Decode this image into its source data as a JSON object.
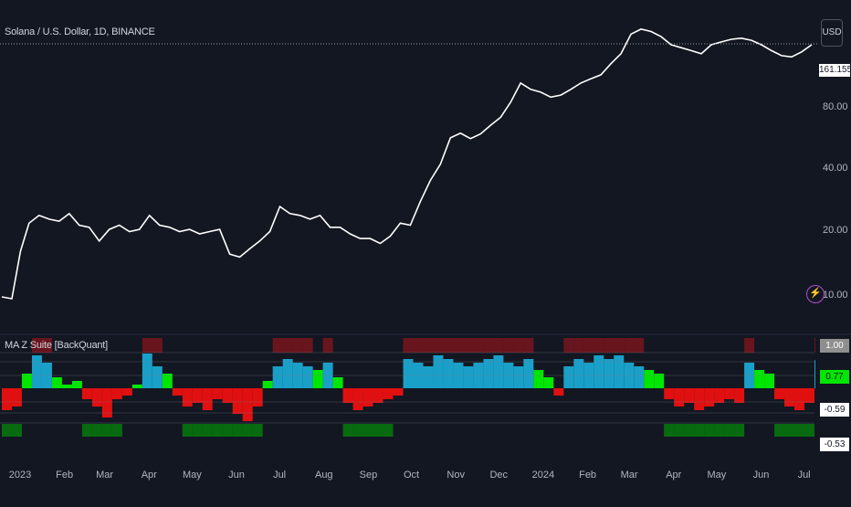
{
  "header": {
    "symbol": "Solana / U.S. Dollar, 1D, BINANCE",
    "currency": "USD"
  },
  "indicator": {
    "name": "MA Z Suite [BackQuant]"
  },
  "price_axis": {
    "current_tag": "161.1554",
    "labels": [
      "80.00",
      "40.00",
      "20.00",
      "10.00"
    ]
  },
  "indicator_axis": {
    "tags": [
      {
        "text": "1.00",
        "bg": "#8f8f8f",
        "fg": "#ffffff"
      },
      {
        "text": "0.77",
        "bg": "#00e600",
        "fg": "#131722"
      },
      {
        "text": "-0.59",
        "bg": "#ffffff",
        "fg": "#131722"
      },
      {
        "text": "-0.53",
        "bg": "#ffffff",
        "fg": "#131722"
      }
    ]
  },
  "time_axis": [
    "2023",
    "Feb",
    "Mar",
    "Apr",
    "May",
    "Jun",
    "Jul",
    "Aug",
    "Sep",
    "Oct",
    "Nov",
    "Dec",
    "2024",
    "Feb",
    "Mar",
    "Apr",
    "May",
    "Jun",
    "Jul"
  ],
  "colors": {
    "background": "#131722",
    "price_line": "#ffffff",
    "bull_hist": "#00e600",
    "bull_hist_dim": "#1aa0c8",
    "bear_hist": "#e01010",
    "bear_band": "#b0141c",
    "bull_band": "#00b000",
    "grid": "#2a2e39"
  },
  "chart_data": [
    {
      "type": "line",
      "title": "Solana / U.S. Dollar, 1D, BINANCE",
      "scale": "log",
      "y_ticks": [
        10,
        20,
        40,
        80
      ],
      "series": [
        {
          "x": [
            "2023-01-01",
            "2023-01-08",
            "2023-01-14",
            "2023-01-20",
            "2023-01-27",
            "2023-02-03",
            "2023-02-10",
            "2023-02-17",
            "2023-02-24",
            "2023-03-03",
            "2023-03-10",
            "2023-03-17",
            "2023-03-24",
            "2023-03-31",
            "2023-04-07",
            "2023-04-14",
            "2023-04-21",
            "2023-04-28",
            "2023-05-05",
            "2023-05-12",
            "2023-05-19",
            "2023-05-26",
            "2023-06-02",
            "2023-06-09",
            "2023-06-16",
            "2023-06-23",
            "2023-06-30",
            "2023-07-07",
            "2023-07-14",
            "2023-07-21",
            "2023-07-28",
            "2023-08-04",
            "2023-08-11",
            "2023-08-18",
            "2023-08-25",
            "2023-09-01",
            "2023-09-08",
            "2023-09-15",
            "2023-09-22",
            "2023-09-29",
            "2023-10-06",
            "2023-10-13",
            "2023-10-20",
            "2023-10-27",
            "2023-11-03",
            "2023-11-10",
            "2023-11-17",
            "2023-11-24",
            "2023-12-01",
            "2023-12-08",
            "2023-12-15",
            "2023-12-22",
            "2023-12-29",
            "2024-01-05",
            "2024-01-12",
            "2024-01-19",
            "2024-01-26",
            "2024-02-02",
            "2024-02-09",
            "2024-02-16",
            "2024-02-23",
            "2024-03-01",
            "2024-03-08",
            "2024-03-15",
            "2024-03-22",
            "2024-03-29",
            "2024-04-05",
            "2024-04-12",
            "2024-04-19",
            "2024-04-26",
            "2024-05-03",
            "2024-05-10",
            "2024-05-17",
            "2024-05-24",
            "2024-05-31",
            "2024-06-07",
            "2024-06-14",
            "2024-06-21",
            "2024-06-28",
            "2024-07-05",
            "2024-07-12",
            "2024-07-19"
          ],
          "y": [
            10.0,
            9.8,
            16.5,
            22.5,
            24.5,
            23.5,
            23.0,
            25.0,
            22.0,
            21.5,
            18.5,
            21.0,
            22.0,
            20.5,
            21.0,
            24.5,
            22.0,
            21.5,
            20.5,
            21.0,
            20.0,
            20.5,
            21.0,
            16.0,
            15.5,
            17.0,
            18.5,
            20.5,
            27.0,
            25.0,
            24.5,
            23.5,
            24.5,
            21.5,
            21.5,
            20.0,
            19.0,
            19.0,
            18.0,
            19.5,
            22.5,
            22.0,
            28.5,
            36.0,
            43.0,
            57.5,
            60.5,
            57.0,
            60.0,
            66.0,
            72.0,
            85.0,
            105.0,
            98.0,
            95.0,
            90.0,
            92.0,
            98.0,
            105.0,
            110.0,
            115.0,
            130.0,
            145.0,
            180.0,
            190.0,
            185.0,
            175.0,
            160.0,
            155.0,
            150.0,
            145.0,
            160.0,
            165.0,
            170.0,
            172.0,
            168.0,
            160.0,
            150.0,
            142.0,
            140.0,
            148.0,
            160.0
          ]
        }
      ]
    },
    {
      "type": "bar",
      "title": "MA Z Suite [BackQuant]",
      "ylim": [
        -1,
        1
      ],
      "x": [
        "2023-01-01",
        "2023-01-08",
        "2023-01-15",
        "2023-01-22",
        "2023-01-29",
        "2023-02-05",
        "2023-02-12",
        "2023-02-19",
        "2023-02-26",
        "2023-03-05",
        "2023-03-12",
        "2023-03-19",
        "2023-03-26",
        "2023-04-02",
        "2023-04-09",
        "2023-04-16",
        "2023-04-23",
        "2023-04-30",
        "2023-05-07",
        "2023-05-14",
        "2023-05-21",
        "2023-05-28",
        "2023-06-04",
        "2023-06-11",
        "2023-06-18",
        "2023-06-25",
        "2023-07-02",
        "2023-07-09",
        "2023-07-16",
        "2023-07-23",
        "2023-07-30",
        "2023-08-06",
        "2023-08-13",
        "2023-08-20",
        "2023-08-27",
        "2023-09-03",
        "2023-09-10",
        "2023-09-17",
        "2023-09-24",
        "2023-10-01",
        "2023-10-08",
        "2023-10-15",
        "2023-10-22",
        "2023-10-29",
        "2023-11-05",
        "2023-11-12",
        "2023-11-19",
        "2023-11-26",
        "2023-12-03",
        "2023-12-10",
        "2023-12-17",
        "2023-12-24",
        "2023-12-31",
        "2024-01-07",
        "2024-01-14",
        "2024-01-21",
        "2024-01-28",
        "2024-02-04",
        "2024-02-11",
        "2024-02-18",
        "2024-02-25",
        "2024-03-03",
        "2024-03-10",
        "2024-03-17",
        "2024-03-24",
        "2024-03-31",
        "2024-04-07",
        "2024-04-14",
        "2024-04-21",
        "2024-04-28",
        "2024-05-05",
        "2024-05-12",
        "2024-05-19",
        "2024-05-26",
        "2024-06-02",
        "2024-06-09",
        "2024-06-16",
        "2024-06-23",
        "2024-06-30",
        "2024-07-07",
        "2024-07-14",
        "2024-07-21"
      ],
      "values": [
        -0.6,
        -0.5,
        0.4,
        0.9,
        0.7,
        0.3,
        0.1,
        0.2,
        -0.3,
        -0.5,
        -0.8,
        -0.3,
        -0.2,
        0.1,
        0.95,
        0.6,
        0.4,
        -0.2,
        -0.5,
        -0.4,
        -0.6,
        -0.3,
        -0.4,
        -0.7,
        -0.9,
        -0.5,
        0.2,
        0.6,
        0.8,
        0.7,
        0.6,
        0.5,
        0.7,
        0.3,
        -0.4,
        -0.6,
        -0.5,
        -0.4,
        -0.3,
        -0.2,
        0.8,
        0.7,
        0.6,
        0.9,
        0.8,
        0.7,
        0.6,
        0.7,
        0.8,
        0.9,
        0.7,
        0.6,
        0.8,
        0.5,
        0.3,
        -0.2,
        0.6,
        0.8,
        0.7,
        0.9,
        0.8,
        0.9,
        0.7,
        0.6,
        0.5,
        0.4,
        -0.3,
        -0.5,
        -0.4,
        -0.6,
        -0.5,
        -0.4,
        -0.3,
        -0.4,
        0.7,
        0.5,
        0.4,
        -0.3,
        -0.5,
        -0.6,
        -0.4,
        0.77
      ]
    }
  ]
}
